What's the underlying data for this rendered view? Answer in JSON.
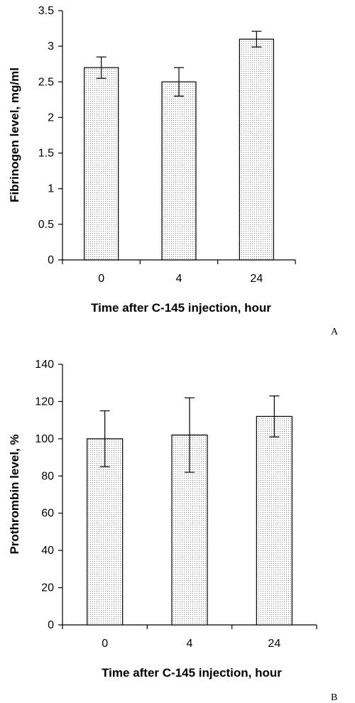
{
  "chart_data": [
    {
      "type": "bar",
      "panel": "A",
      "categories": [
        "0",
        "4",
        "24"
      ],
      "values": [
        2.7,
        2.5,
        3.1
      ],
      "errors": [
        0.15,
        0.2,
        0.11
      ],
      "xlabel": "Time after C-145 injection, hour",
      "ylabel": "Fibrinogen level, mg/ml",
      "ylim": [
        0,
        3.5
      ],
      "yticks": [
        "0",
        "0.5",
        "1",
        "1.5",
        "2",
        "2.5",
        "3",
        "3.5"
      ],
      "grid": false,
      "bar_fill": "#e8e8e8"
    },
    {
      "type": "bar",
      "panel": "B",
      "categories": [
        "0",
        "4",
        "24"
      ],
      "values": [
        100,
        102,
        112
      ],
      "errors": [
        15,
        20,
        11
      ],
      "xlabel": "Time after C-145 injection, hour",
      "ylabel": "Prothrombin level, %",
      "ylim": [
        0,
        140
      ],
      "yticks": [
        "0",
        "20",
        "40",
        "60",
        "80",
        "100",
        "120",
        "140"
      ],
      "grid": false,
      "bar_fill": "#e8e8e8"
    }
  ]
}
